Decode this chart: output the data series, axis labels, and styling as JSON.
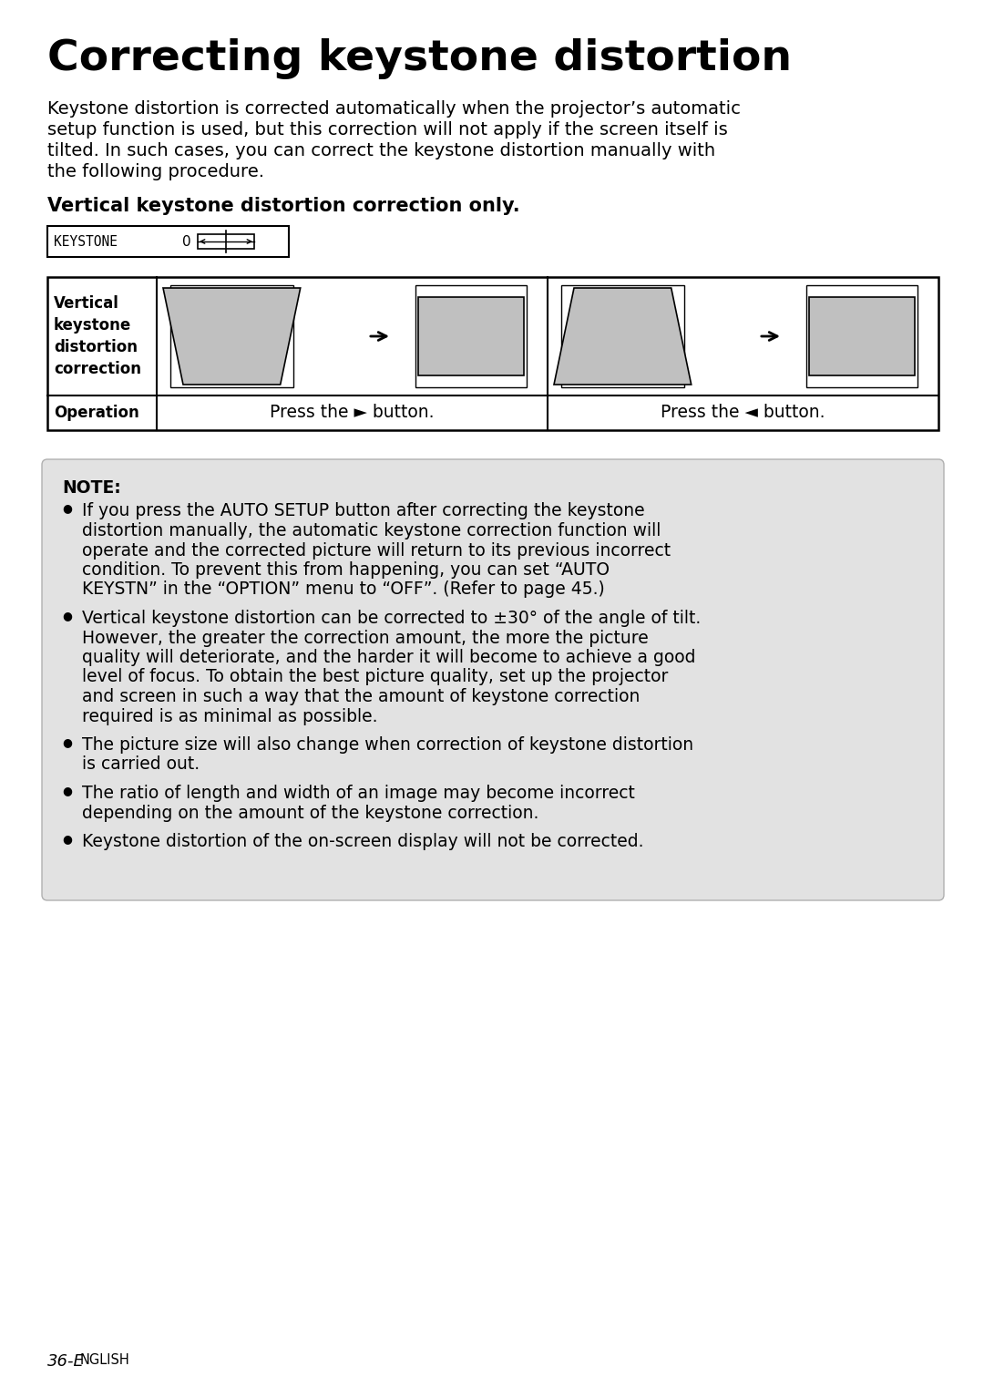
{
  "title": "Correcting keystone distortion",
  "title_fontsize": 34,
  "body_lines": [
    "Keystone distortion is corrected automatically when the projector’s automatic",
    "setup function is used, but this correction will not apply if the screen itself is",
    "tilted. In such cases, you can correct the keystone distortion manually with",
    "the following procedure."
  ],
  "body_fontsize": 14,
  "subtitle": "Vertical keystone distortion correction only.",
  "subtitle_fontsize": 15,
  "keystone_label": "KEYSTONE",
  "keystone_value": "0",
  "op1_text": "Press the ► button.",
  "op2_text": "Press the ◄ button.",
  "note_title": "NOTE:",
  "note_fontsize": 13.5,
  "bullet_texts": [
    [
      "If you press the AUTO SETUP button after correcting the keystone",
      "distortion manually, the automatic keystone correction function will",
      "operate and the corrected picture will return to its previous incorrect",
      "condition. To prevent this from happening, you can set “AUTO",
      "KEYSTN” in the “OPTION” menu to “OFF”. (Refer to page 45.)"
    ],
    [
      "Vertical keystone distortion can be corrected to ±30° of the angle of tilt.",
      "However, the greater the correction amount, the more the picture",
      "quality will deteriorate, and the harder it will become to achieve a good",
      "level of focus. To obtain the best picture quality, set up the projector",
      "and screen in such a way that the amount of keystone correction",
      "required is as minimal as possible."
    ],
    [
      "The picture size will also change when correction of keystone distortion",
      "is carried out."
    ],
    [
      "The ratio of length and width of an image may become incorrect",
      "depending on the amount of the keystone correction."
    ],
    [
      "Keystone distortion of the on-screen display will not be corrected."
    ]
  ],
  "footer_text": "36-E",
  "footer_suffix": "NGLISH",
  "bg_color": "#ffffff",
  "note_bg_color": "#e2e2e2",
  "gray_fill": "#c0c0c0",
  "white": "#ffffff",
  "black": "#000000"
}
